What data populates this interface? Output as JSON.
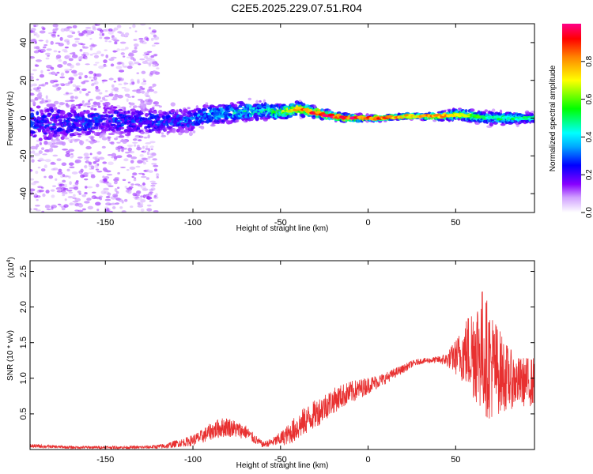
{
  "title": "C2E5.2025.229.07.51.R04",
  "colors": {
    "snr_line": "#e83030",
    "spectrum_colormap": [
      "#ffffff",
      "#8800ff",
      "#0000ff",
      "#00ffff",
      "#00ff00",
      "#ffff00",
      "#ff8800",
      "#ff0000",
      "#ff0088"
    ]
  },
  "chart_data": [
    {
      "type": "heatmap",
      "xlabel": "Height of straight line (km)",
      "ylabel": "Frequency (Hz)",
      "xlim": [
        -193,
        95
      ],
      "ylim": [
        -50,
        50
      ],
      "x_ticks": [
        -150,
        -100,
        -50,
        0,
        50
      ],
      "y_ticks": [
        -40,
        -20,
        0,
        20,
        40
      ],
      "colorbar": {
        "label": "Normalized spectral amplitude",
        "range": [
          0,
          1
        ],
        "ticks": [
          "0.0",
          "0.2",
          "0.4",
          "0.6",
          "0.8"
        ],
        "tick_values": [
          0,
          0.2,
          0.4,
          0.6,
          0.8
        ]
      },
      "ridge": [
        {
          "x": -190,
          "f": -3,
          "spread": 18,
          "amp": 0.28
        },
        {
          "x": -170,
          "f": -2,
          "spread": 16,
          "amp": 0.27
        },
        {
          "x": -150,
          "f": -1,
          "spread": 15,
          "amp": 0.28
        },
        {
          "x": -130,
          "f": -2,
          "spread": 12,
          "amp": 0.27
        },
        {
          "x": -110,
          "f": -1,
          "spread": 10,
          "amp": 0.3
        },
        {
          "x": -100,
          "f": -1,
          "spread": 9,
          "amp": 0.35
        },
        {
          "x": -90,
          "f": 2,
          "spread": 8,
          "amp": 0.4
        },
        {
          "x": -75,
          "f": 3,
          "spread": 8,
          "amp": 0.45
        },
        {
          "x": -60,
          "f": 4,
          "spread": 7,
          "amp": 0.45
        },
        {
          "x": -50,
          "f": 3,
          "spread": 6,
          "amp": 0.6
        },
        {
          "x": -40,
          "f": 5,
          "spread": 5,
          "amp": 0.75
        },
        {
          "x": -30,
          "f": 3,
          "spread": 4,
          "amp": 0.85
        },
        {
          "x": -20,
          "f": 1,
          "spread": 3,
          "amp": 0.9
        },
        {
          "x": -10,
          "f": 0,
          "spread": 3,
          "amp": 0.85
        },
        {
          "x": 0,
          "f": 0,
          "spread": 2,
          "amp": 0.8
        },
        {
          "x": 10,
          "f": 0,
          "spread": 2,
          "amp": 0.75
        },
        {
          "x": 20,
          "f": 1,
          "spread": 2,
          "amp": 0.7
        },
        {
          "x": 30,
          "f": 1,
          "spread": 2,
          "amp": 0.7
        },
        {
          "x": 40,
          "f": 1,
          "spread": 3,
          "amp": 0.75
        },
        {
          "x": 50,
          "f": 2,
          "spread": 4,
          "amp": 0.7
        },
        {
          "x": 60,
          "f": 1,
          "spread": 5,
          "amp": 0.55
        },
        {
          "x": 70,
          "f": 0,
          "spread": 5,
          "amp": 0.45
        },
        {
          "x": 80,
          "f": 0,
          "spread": 5,
          "amp": 0.45
        },
        {
          "x": 90,
          "f": 0,
          "spread": 4,
          "amp": 0.45
        }
      ]
    },
    {
      "type": "line",
      "xlabel": "Height of straight line (km)",
      "ylabel": "SNR (10 * v/v)",
      "y_scale_label": "(x10",
      "y_scale_exponent": "4",
      "y_scale_suffix": ")",
      "xlim": [
        -193,
        95
      ],
      "ylim": [
        0,
        2.65
      ],
      "x_ticks": [
        -150,
        -100,
        -50,
        0,
        50
      ],
      "y_ticks": [
        0.5,
        1.0,
        1.5,
        2.0,
        2.5
      ],
      "series": [
        {
          "values_x": [
            -193,
            -180,
            -170,
            -160,
            -150,
            -140,
            -130,
            -120,
            -115,
            -110,
            -105,
            -100,
            -95,
            -90,
            -85,
            -80,
            -75,
            -70,
            -65,
            -60,
            -55,
            -50,
            -45,
            -40,
            -35,
            -30,
            -25,
            -20,
            -15,
            -10,
            -5,
            0,
            5,
            10,
            15,
            20,
            25,
            30,
            35,
            40,
            45,
            50,
            55,
            60,
            65,
            70,
            75,
            80,
            85,
            90,
            95
          ],
          "values_mean": [
            0.05,
            0.04,
            0.03,
            0.03,
            0.03,
            0.03,
            0.03,
            0.04,
            0.05,
            0.08,
            0.1,
            0.13,
            0.18,
            0.25,
            0.3,
            0.32,
            0.28,
            0.25,
            0.15,
            0.07,
            0.1,
            0.15,
            0.22,
            0.32,
            0.42,
            0.5,
            0.6,
            0.68,
            0.75,
            0.8,
            0.85,
            0.9,
            0.95,
            1.0,
            1.07,
            1.13,
            1.2,
            1.24,
            1.25,
            1.26,
            1.26,
            1.3,
            1.35,
            1.4,
            1.4,
            1.2,
            1.1,
            1.0,
            0.95,
            0.95,
            0.95
          ],
          "values_noise": [
            0.03,
            0.02,
            0.02,
            0.02,
            0.02,
            0.02,
            0.02,
            0.03,
            0.04,
            0.05,
            0.06,
            0.08,
            0.1,
            0.12,
            0.14,
            0.14,
            0.12,
            0.1,
            0.07,
            0.04,
            0.06,
            0.1,
            0.15,
            0.2,
            0.2,
            0.2,
            0.2,
            0.18,
            0.17,
            0.16,
            0.14,
            0.12,
            0.1,
            0.08,
            0.07,
            0.06,
            0.05,
            0.04,
            0.04,
            0.05,
            0.1,
            0.25,
            0.45,
            0.7,
            0.9,
            0.8,
            0.6,
            0.45,
            0.35,
            0.35,
            0.35
          ]
        }
      ]
    }
  ]
}
